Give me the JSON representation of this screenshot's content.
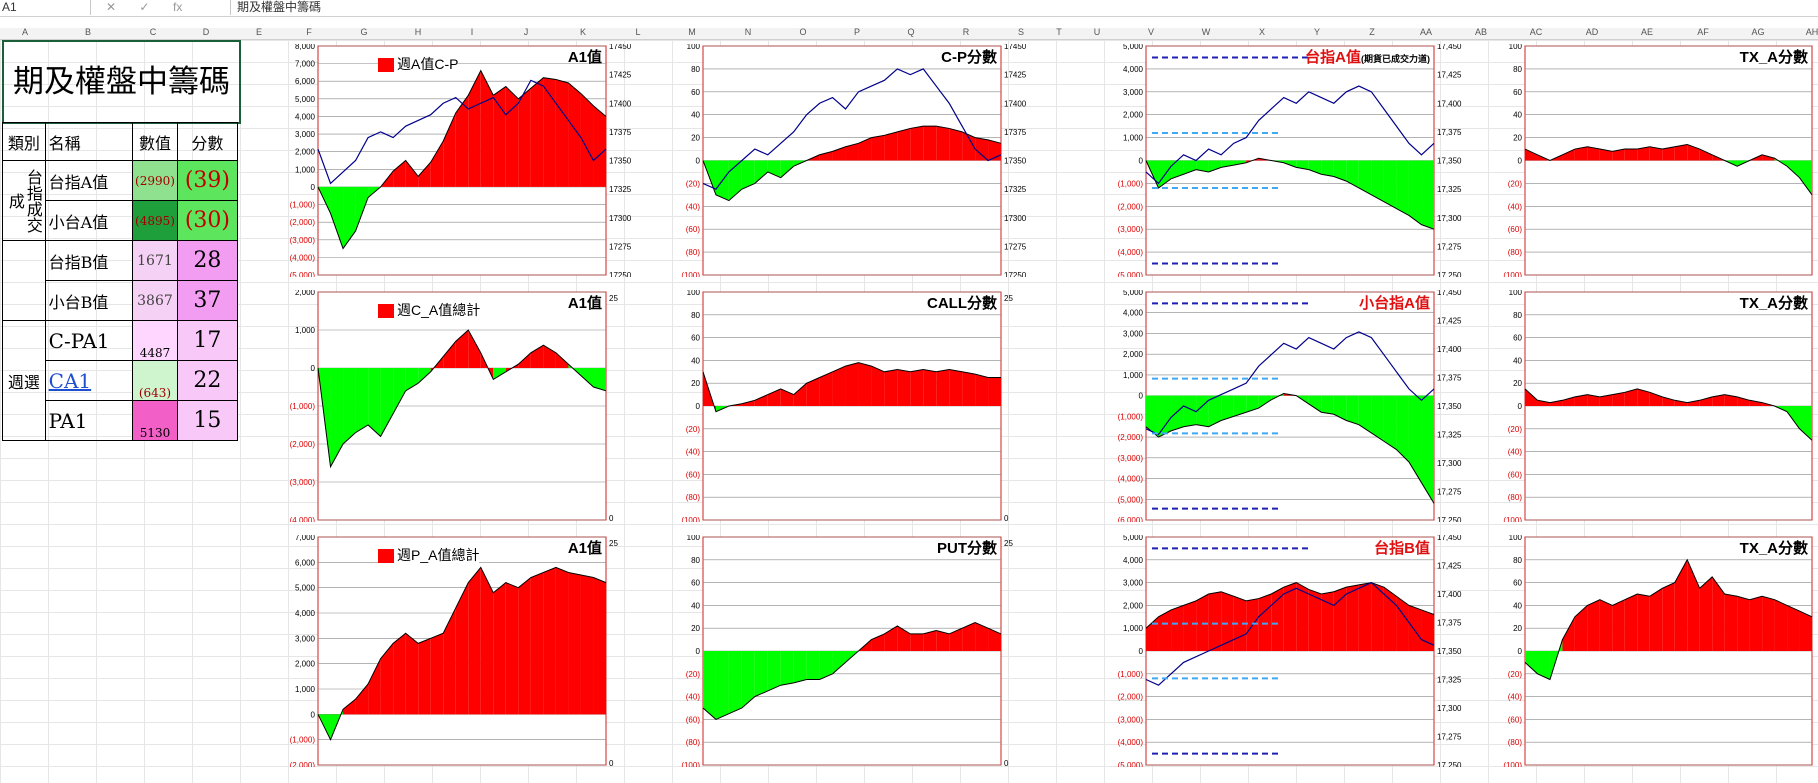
{
  "formula_bar": {
    "name_box": "A1",
    "formula_text": "期及權盤中籌碼",
    "cancel_icon": "✕",
    "enter_icon": "✓",
    "fx_icon": "fx"
  },
  "column_headers": [
    "A",
    "B",
    "C",
    "D",
    "E",
    "F",
    "G",
    "H",
    "I",
    "J",
    "K",
    "L",
    "M",
    "N",
    "O",
    "P",
    "Q",
    "R",
    "S",
    "T",
    "U",
    "V",
    "W",
    "X",
    "Y",
    "Z",
    "AA",
    "AB",
    "AC",
    "AD",
    "AE",
    "AF",
    "AG",
    "AH"
  ],
  "sheet_title": "期及權盤中籌碼",
  "table_header": {
    "category": "類別",
    "name": "名稱",
    "value": "數值",
    "score": "分數"
  },
  "groups": [
    {
      "label": "台指成交成",
      "rows": [
        {
          "name": "台指A值",
          "value": "(2990)",
          "score": "(39)"
        },
        {
          "name": "小台A值",
          "value": "(4895)",
          "score": "(30)"
        }
      ]
    },
    {
      "label": "",
      "rows": [
        {
          "name": "台指B值",
          "value": "1671",
          "score": "28"
        },
        {
          "name": "小台B值",
          "value": "3867",
          "score": "37"
        }
      ]
    },
    {
      "label": "週選",
      "rows": [
        {
          "name": "C-PA1",
          "value": "4487",
          "score": "17"
        },
        {
          "name": "CA1",
          "value": "(643)",
          "score": "22"
        },
        {
          "name": "PA1",
          "value": "5130",
          "score": "15"
        }
      ]
    }
  ],
  "chart_data": [
    {
      "id": "c1",
      "type": "area",
      "title": "A1值",
      "legend": "週A值C-P",
      "y_left_ticks": [
        "8,000",
        "7,000",
        "6,000",
        "5,000",
        "4,000",
        "3,000",
        "2,000",
        "1,000",
        "0",
        "(1,000)",
        "(2,000)",
        "(3,000)",
        "(4,000)",
        "(5,000)"
      ],
      "y_right_ticks": [
        "17450",
        "17425",
        "17400",
        "17375",
        "17350",
        "17325",
        "17300",
        "17275",
        "17250"
      ],
      "ylim": [
        -5000,
        8000
      ],
      "y2lim": [
        17250,
        17450
      ],
      "series": [
        {
          "values": [
            0,
            -1500,
            -3500,
            -2500,
            -600,
            0,
            900,
            1500,
            600,
            1400,
            2600,
            4200,
            5200,
            6600,
            5200,
            5700,
            5000,
            5600,
            6200,
            6100,
            5900,
            5300,
            4600,
            4000
          ]
        },
        {
          "kind": "line",
          "values": [
            17360,
            17330,
            17340,
            17350,
            17370,
            17375,
            17370,
            17380,
            17385,
            17390,
            17400,
            17405,
            17395,
            17400,
            17405,
            17390,
            17400,
            17420,
            17415,
            17400,
            17385,
            17370,
            17350,
            17360
          ]
        }
      ]
    },
    {
      "id": "c2",
      "type": "area",
      "title": "C-P分數",
      "y_left_ticks": [
        "100",
        "80",
        "60",
        "40",
        "20",
        "0",
        "(20)",
        "(40)",
        "(60)",
        "(80)",
        "(100)"
      ],
      "y_right_ticks": [
        "17450",
        "17425",
        "17400",
        "17375",
        "17350",
        "17325",
        "17300",
        "17275",
        "17250"
      ],
      "ylim": [
        -100,
        100
      ],
      "y2lim": [
        17250,
        17450
      ],
      "series": [
        {
          "values": [
            0,
            -30,
            -35,
            -25,
            -20,
            -10,
            -15,
            -5,
            0,
            5,
            8,
            12,
            15,
            20,
            22,
            25,
            28,
            30,
            30,
            28,
            25,
            20,
            18,
            15
          ]
        },
        {
          "kind": "line",
          "values": [
            17330,
            17325,
            17340,
            17350,
            17360,
            17355,
            17365,
            17375,
            17390,
            17400,
            17405,
            17395,
            17410,
            17415,
            17420,
            17430,
            17425,
            17430,
            17415,
            17400,
            17380,
            17360,
            17350,
            17355
          ]
        }
      ]
    },
    {
      "id": "c3",
      "type": "area",
      "title": "台指A值",
      "subtitle": "(期貨已成交力道)",
      "y_left_ticks": [
        "5,000",
        "4,000",
        "3,000",
        "2,000",
        "1,000",
        "0",
        "(1,000)",
        "(2,000)",
        "(3,000)",
        "(4,000)",
        "(5,000)"
      ],
      "y_right_ticks": [
        "17,450",
        "17,425",
        "17,400",
        "17,375",
        "17,350",
        "17,325",
        "17,300",
        "17,275",
        "17,250"
      ],
      "ylim": [
        -5000,
        5000
      ],
      "y2lim": [
        17250,
        17450
      ],
      "series": [
        {
          "values": [
            0,
            -1200,
            -800,
            -600,
            -400,
            -500,
            -300,
            -200,
            -100,
            100,
            0,
            -100,
            -300,
            -400,
            -600,
            -700,
            -900,
            -1200,
            -1500,
            -1800,
            -2100,
            -2400,
            -2800,
            -3000
          ]
        },
        {
          "kind": "line",
          "values": [
            17340,
            17330,
            17345,
            17355,
            17350,
            17360,
            17355,
            17365,
            17370,
            17385,
            17395,
            17405,
            17400,
            17410,
            17405,
            17400,
            17410,
            17415,
            17410,
            17395,
            17380,
            17365,
            17355,
            17365
          ]
        }
      ]
    },
    {
      "id": "c4",
      "type": "area",
      "title": "TX_A分數",
      "y_left_ticks": [
        "100",
        "80",
        "60",
        "40",
        "20",
        "0",
        "(20)",
        "(40)",
        "(60)",
        "(80)",
        "(100)"
      ],
      "ylim": [
        -100,
        100
      ],
      "series": [
        {
          "values": [
            10,
            5,
            0,
            5,
            10,
            12,
            10,
            8,
            10,
            10,
            12,
            10,
            12,
            14,
            10,
            5,
            0,
            -5,
            0,
            5,
            2,
            -5,
            -15,
            -30
          ]
        }
      ]
    },
    {
      "id": "c5",
      "type": "area",
      "title": "A1值",
      "legend": "週C_A值總計",
      "y_left_ticks": [
        "2,000",
        "1,000",
        "0",
        "(1,000)",
        "(2,000)",
        "(3,000)",
        "(4,000)"
      ],
      "y_right_ticks": [
        "25",
        "0"
      ],
      "ylim": [
        -4000,
        2000
      ],
      "series": [
        {
          "values": [
            0,
            -2600,
            -2000,
            -1700,
            -1500,
            -1800,
            -1200,
            -600,
            -400,
            -100,
            300,
            700,
            1000,
            400,
            -300,
            -100,
            100,
            400,
            600,
            400,
            100,
            -200,
            -500,
            -600
          ]
        }
      ]
    },
    {
      "id": "c6",
      "type": "area",
      "title": "CALL分數",
      "y_left_ticks": [
        "100",
        "80",
        "60",
        "40",
        "20",
        "0",
        "(20)",
        "(40)",
        "(60)",
        "(80)",
        "(100)"
      ],
      "y_right_ticks": [
        "25",
        "0"
      ],
      "ylim": [
        -100,
        100
      ],
      "series": [
        {
          "values": [
            30,
            -5,
            0,
            2,
            5,
            10,
            15,
            10,
            20,
            25,
            30,
            35,
            38,
            35,
            30,
            32,
            30,
            32,
            30,
            32,
            30,
            28,
            25,
            25
          ]
        }
      ]
    },
    {
      "id": "c7",
      "type": "area",
      "title": "小台指A值",
      "y_left_ticks": [
        "5,000",
        "4,000",
        "3,000",
        "2,000",
        "1,000",
        "0",
        "(1,000)",
        "(2,000)",
        "(3,000)",
        "(4,000)",
        "(5,000)",
        "(6,000)"
      ],
      "y_right_ticks": [
        "17,450",
        "17,425",
        "17,400",
        "17,375",
        "17,350",
        "17,325",
        "17,300",
        "17,275",
        "17,250"
      ],
      "ylim": [
        -6000,
        5000
      ],
      "y2lim": [
        17250,
        17450
      ],
      "series": [
        {
          "values": [
            -1500,
            -2000,
            -1700,
            -1500,
            -1400,
            -1500,
            -1200,
            -1000,
            -800,
            -600,
            -200,
            100,
            0,
            -400,
            -800,
            -900,
            -1200,
            -1400,
            -1800,
            -2200,
            -2600,
            -3200,
            -4200,
            -5200
          ]
        },
        {
          "kind": "line",
          "values": [
            17330,
            17325,
            17340,
            17350,
            17345,
            17355,
            17360,
            17365,
            17370,
            17385,
            17395,
            17405,
            17400,
            17410,
            17405,
            17400,
            17410,
            17415,
            17410,
            17395,
            17380,
            17365,
            17355,
            17365
          ]
        }
      ]
    },
    {
      "id": "c8",
      "type": "area",
      "title": "TX_A分數",
      "y_left_ticks": [
        "100",
        "80",
        "60",
        "40",
        "20",
        "0",
        "(20)",
        "(40)",
        "(60)",
        "(80)",
        "(100)"
      ],
      "ylim": [
        -100,
        100
      ],
      "series": [
        {
          "values": [
            15,
            5,
            3,
            5,
            8,
            10,
            8,
            10,
            12,
            15,
            12,
            8,
            5,
            3,
            5,
            8,
            10,
            8,
            5,
            3,
            0,
            -5,
            -20,
            -30
          ]
        }
      ]
    },
    {
      "id": "c9",
      "type": "area",
      "title": "A1值",
      "legend": "週P_A值總計",
      "y_left_ticks": [
        "7,000",
        "6,000",
        "5,000",
        "4,000",
        "3,000",
        "2,000",
        "1,000",
        "0",
        "(1,000)",
        "(2,000)"
      ],
      "y_right_ticks": [
        "25",
        "0"
      ],
      "ylim": [
        -2000,
        7000
      ],
      "series": [
        {
          "values": [
            0,
            -1000,
            200,
            600,
            1200,
            2200,
            2800,
            3200,
            2800,
            3000,
            3200,
            4200,
            5200,
            5800,
            4800,
            5200,
            5000,
            5400,
            5600,
            5800,
            5600,
            5500,
            5400,
            5200
          ]
        }
      ]
    },
    {
      "id": "c10",
      "type": "area",
      "title": "PUT分數",
      "y_left_ticks": [
        "100",
        "80",
        "60",
        "40",
        "20",
        "0",
        "(20)",
        "(40)",
        "(60)",
        "(80)",
        "(100)"
      ],
      "y_right_ticks": [
        "25",
        "0"
      ],
      "ylim": [
        -100,
        100
      ],
      "series": [
        {
          "values": [
            -50,
            -60,
            -55,
            -50,
            -40,
            -35,
            -30,
            -28,
            -25,
            -25,
            -20,
            -10,
            0,
            10,
            15,
            22,
            15,
            15,
            18,
            15,
            20,
            25,
            20,
            15
          ]
        }
      ]
    },
    {
      "id": "c11",
      "type": "area",
      "title": "台指B值",
      "y_left_ticks": [
        "5,000",
        "4,000",
        "3,000",
        "2,000",
        "1,000",
        "0",
        "(1,000)",
        "(2,000)",
        "(3,000)",
        "(4,000)",
        "(5,000)"
      ],
      "y_right_ticks": [
        "17,450",
        "17,425",
        "17,400",
        "17,375",
        "17,350",
        "17,325",
        "17,300",
        "17,275",
        "17,250"
      ],
      "ylim": [
        -5000,
        5000
      ],
      "y2lim": [
        17250,
        17450
      ],
      "series": [
        {
          "values": [
            1000,
            1500,
            1800,
            2000,
            2200,
            2500,
            2600,
            2400,
            2200,
            2300,
            2500,
            2800,
            3000,
            2700,
            2500,
            2600,
            2800,
            2900,
            3000,
            2800,
            2400,
            2000,
            1800,
            1600
          ]
        },
        {
          "kind": "line",
          "values": [
            17325,
            17320,
            17330,
            17340,
            17345,
            17350,
            17355,
            17360,
            17365,
            17380,
            17390,
            17400,
            17405,
            17400,
            17395,
            17390,
            17400,
            17405,
            17410,
            17400,
            17390,
            17375,
            17360,
            17355
          ]
        }
      ]
    },
    {
      "id": "c12",
      "type": "area",
      "title": "TX_A分數",
      "y_left_ticks": [
        "100",
        "80",
        "60",
        "40",
        "20",
        "0",
        "(20)",
        "(40)",
        "(60)",
        "(80)",
        "(100)"
      ],
      "ylim": [
        -100,
        100
      ],
      "series": [
        {
          "values": [
            -10,
            -20,
            -25,
            10,
            30,
            40,
            45,
            40,
            45,
            50,
            48,
            55,
            60,
            80,
            55,
            65,
            50,
            48,
            45,
            48,
            45,
            40,
            35,
            30
          ]
        }
      ]
    }
  ],
  "colors": {
    "positive": "#ff0000",
    "negative": "#00ff00",
    "price_line": "#00008b",
    "dash_dark": "#1f1fb4",
    "dash_light": "#3fa9f5",
    "title_red": "#e01010",
    "chart_border": "#d21f1f"
  }
}
